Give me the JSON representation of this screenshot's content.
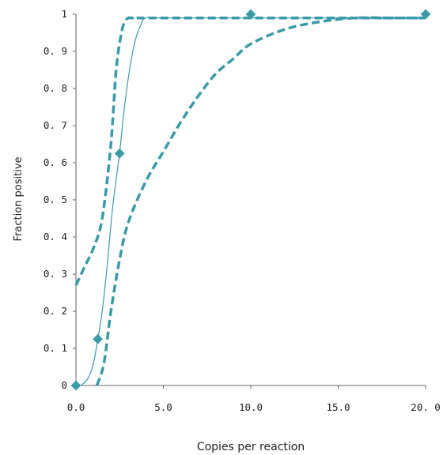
{
  "chart_data": {
    "type": "scatter",
    "title": "",
    "xlabel": "Copies per reaction",
    "ylabel": "Fraction positive",
    "xlim": [
      0,
      20
    ],
    "ylim": [
      0,
      1
    ],
    "x_ticks": [
      "0.0",
      "5.0",
      "10.0",
      "15.0",
      "20. 0"
    ],
    "x_tick_values": [
      0,
      5,
      10,
      15,
      20
    ],
    "y_ticks": [
      "0",
      "0. 1",
      "0. 2",
      "0. 3",
      "0. 4",
      "0. 5",
      "0. 6",
      "0. 7",
      "0. 8",
      "0. 9",
      "1"
    ],
    "y_tick_values": [
      0,
      0.1,
      0.2,
      0.3,
      0.4,
      0.5,
      0.6,
      0.7,
      0.8,
      0.9,
      1.0
    ],
    "grid": false,
    "legend": "none",
    "color": "#3a9aa8",
    "series": [
      {
        "kind": "points",
        "x": [
          0.0,
          1.25,
          2.5,
          10.0,
          20.0
        ],
        "y": [
          0.0,
          0.125,
          0.625,
          1.0,
          1.0
        ]
      },
      {
        "kind": "fit-curve",
        "x": [
          0.3,
          0.7,
          1.0,
          1.25,
          1.5,
          1.8,
          2.1,
          2.5,
          2.8,
          3.1,
          3.4,
          3.7,
          4.0,
          5.0,
          10.0,
          20.0
        ],
        "y": [
          0.0,
          0.02,
          0.06,
          0.125,
          0.2,
          0.33,
          0.48,
          0.63,
          0.76,
          0.86,
          0.93,
          0.97,
          0.99,
          0.99,
          0.99,
          0.99
        ]
      },
      {
        "kind": "upper-bound",
        "x": [
          0.0,
          0.5,
          1.0,
          1.5,
          2.0,
          2.3,
          2.6,
          2.8,
          3.0,
          3.2,
          4.0,
          10.0,
          20.0
        ],
        "y": [
          0.27,
          0.32,
          0.37,
          0.45,
          0.65,
          0.85,
          0.95,
          0.98,
          0.99,
          0.99,
          0.99,
          0.99,
          0.99
        ]
      },
      {
        "kind": "lower-bound",
        "x": [
          1.2,
          1.6,
          2.0,
          2.5,
          3.0,
          4.0,
          5.0,
          6.0,
          7.0,
          8.0,
          9.0,
          10.0,
          12.0,
          14.0,
          16.0,
          18.0,
          20.0
        ],
        "y": [
          0.0,
          0.06,
          0.2,
          0.34,
          0.44,
          0.55,
          0.63,
          0.71,
          0.78,
          0.84,
          0.88,
          0.92,
          0.96,
          0.98,
          0.99,
          0.99,
          0.99
        ]
      }
    ]
  }
}
